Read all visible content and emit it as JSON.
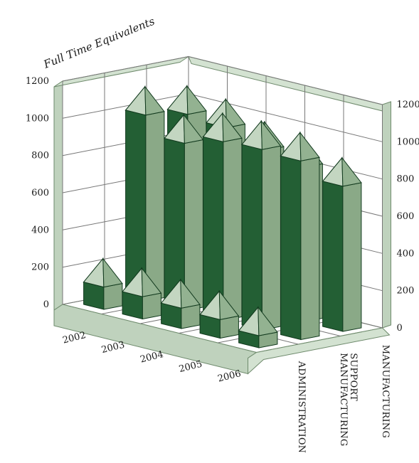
{
  "chart_data": {
    "type": "bar",
    "variant": "3d-column-pyramid-caps",
    "title": "Full Time Equivalents",
    "categories": [
      "2002",
      "2003",
      "2004",
      "2005",
      "2006"
    ],
    "series": [
      {
        "name": "ADMINISTRATION",
        "values": [
          120,
          120,
          110,
          100,
          65
        ]
      },
      {
        "name": "MANUFACTURING SUPPORT",
        "values": [
          1000,
          900,
          960,
          970,
          960
        ]
      },
      {
        "name": "MANUFACTURING",
        "values": [
          960,
          940,
          870,
          830,
          780
        ]
      }
    ],
    "ylim": [
      0,
      1200
    ],
    "yticks": [
      "0",
      "200",
      "400",
      "600",
      "800",
      "1000",
      "1200"
    ],
    "grid": true,
    "colors": {
      "front": "#235f34",
      "side": "#8aa987",
      "cap_left": "#c3d6c1",
      "cap_right": "#93b291",
      "frame_front": "#bfd2bd",
      "frame_top": "#d3e2d1",
      "frame_edge": "#6e8a6c",
      "grid": "#777777"
    }
  }
}
